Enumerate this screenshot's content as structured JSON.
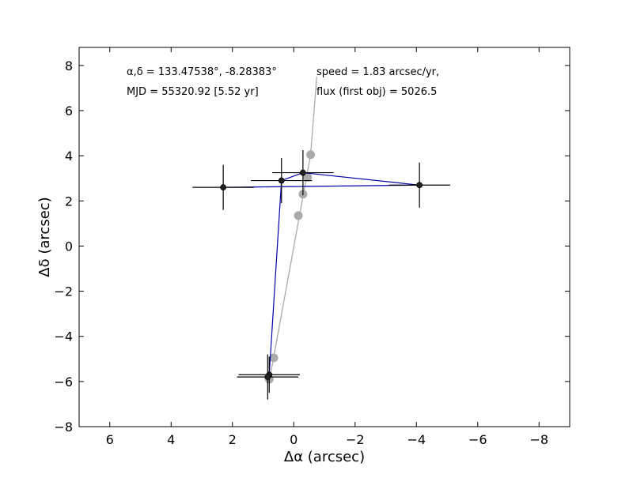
{
  "chart_data": {
    "type": "scatter",
    "xlabel": "Δα (arcsec)",
    "ylabel": "Δδ (arcsec)",
    "xlim": [
      7,
      -9
    ],
    "ylim": [
      -8,
      8.8
    ],
    "x_ticks": [
      6,
      4,
      2,
      0,
      -2,
      -4,
      -6,
      -8
    ],
    "y_ticks": [
      8,
      6,
      4,
      2,
      0,
      -2,
      -4,
      -6,
      -8
    ],
    "x_tick_labels": [
      "6",
      "4",
      "2",
      "0",
      "−2",
      "−4",
      "−6",
      "−8"
    ],
    "y_tick_labels": [
      "8",
      "6",
      "4",
      "2",
      "0",
      "−2",
      "−4",
      "−6",
      "−8"
    ],
    "grid": false,
    "annotations": {
      "coords": "α,δ = 133.47538°, -8.28383°",
      "mjd": "MJD = 55320.92 [5.52 yr]",
      "speed": "speed = 1.83 arcsec/yr,",
      "flux": "flux (first obj) = 5026.5"
    },
    "series": [
      {
        "role": "measurements",
        "color": "#0000aa",
        "marker_color": "#222222",
        "points": [
          {
            "x": 2.3,
            "y": 2.6,
            "xerr": 1.0,
            "yerr": 1.0
          },
          {
            "x": -4.1,
            "y": 2.7,
            "xerr": 1.0,
            "yerr": 1.0
          },
          {
            "x": -0.3,
            "y": 3.25,
            "xerr": 1.0,
            "yerr": 1.0
          },
          {
            "x": 0.4,
            "y": 2.9,
            "xerr": 1.0,
            "yerr": 1.0
          },
          {
            "x": 0.8,
            "y": -5.7,
            "xerr": 1.0,
            "yerr": 0.8
          },
          {
            "x": 0.85,
            "y": -5.8,
            "xerr": 1.0,
            "yerr": 1.0
          }
        ]
      },
      {
        "role": "motion fit",
        "color": "#aaaaaa",
        "line": [
          {
            "x": 0.8,
            "y": -6.0
          },
          {
            "x": -0.55,
            "y": 4.05
          },
          {
            "x": -0.75,
            "y": 7.5
          }
        ],
        "points": [
          {
            "x": 0.8,
            "y": -5.9
          },
          {
            "x": 0.65,
            "y": -4.95
          },
          {
            "x": -0.15,
            "y": 1.35
          },
          {
            "x": -0.3,
            "y": 2.3
          },
          {
            "x": -0.45,
            "y": 3.05
          },
          {
            "x": -0.55,
            "y": 4.05
          }
        ]
      }
    ]
  }
}
